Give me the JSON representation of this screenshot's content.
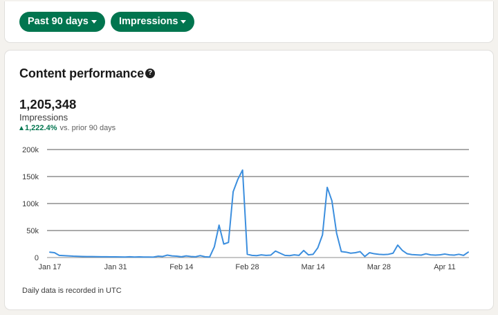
{
  "filters": {
    "range_label": "Past 90 days",
    "metric_label": "Impressions"
  },
  "performance": {
    "title": "Content performance",
    "help_icon_glyph": "?",
    "total": "1,205,348",
    "metric": "Impressions",
    "change_pct": "1,222.4%",
    "change_text": "vs. prior 90 days",
    "footnote": "Daily data is recorded in UTC"
  },
  "colors": {
    "accent": "#01754f",
    "line": "#3b8ede"
  },
  "chart_data": {
    "type": "line",
    "xlabel": "",
    "ylabel": "",
    "ylim": [
      0,
      200000
    ],
    "yticks": [
      0,
      50000,
      100000,
      150000,
      200000
    ],
    "ytick_labels": [
      "0",
      "50k",
      "100k",
      "150k",
      "200k"
    ],
    "xtick_labels": [
      "Jan 17",
      "Jan 31",
      "Feb 14",
      "Feb 28",
      "Mar 14",
      "Mar 28",
      "Apr 11"
    ],
    "xtick_index": [
      0,
      14,
      28,
      42,
      56,
      70,
      84
    ],
    "grid": true,
    "legend": "none",
    "series": [
      {
        "values": [
          10000,
          9000,
          4000,
          3500,
          3000,
          2500,
          2200,
          2000,
          1800,
          1700,
          1600,
          1500,
          1400,
          1300,
          1200,
          1100,
          1000,
          1500,
          1000,
          1200,
          900,
          1000,
          800,
          2500,
          2000,
          4500,
          3000,
          2500,
          1500,
          3000,
          2000,
          1500,
          3500,
          1500,
          1000,
          20000,
          60000,
          25000,
          28000,
          122000,
          145000,
          162000,
          6000,
          4000,
          3500,
          5000,
          4000,
          4500,
          12000,
          8000,
          4000,
          3500,
          5000,
          4000,
          13000,
          5000,
          6000,
          18000,
          42000,
          130000,
          105000,
          45000,
          11000,
          10000,
          8000,
          9000,
          11000,
          2000,
          9000,
          7000,
          6000,
          5500,
          6000,
          8000,
          23000,
          13000,
          7000,
          5500,
          5000,
          4500,
          7000,
          5000,
          4500,
          5000,
          6500,
          5000,
          4500,
          6000,
          4000,
          10000
        ]
      }
    ]
  }
}
